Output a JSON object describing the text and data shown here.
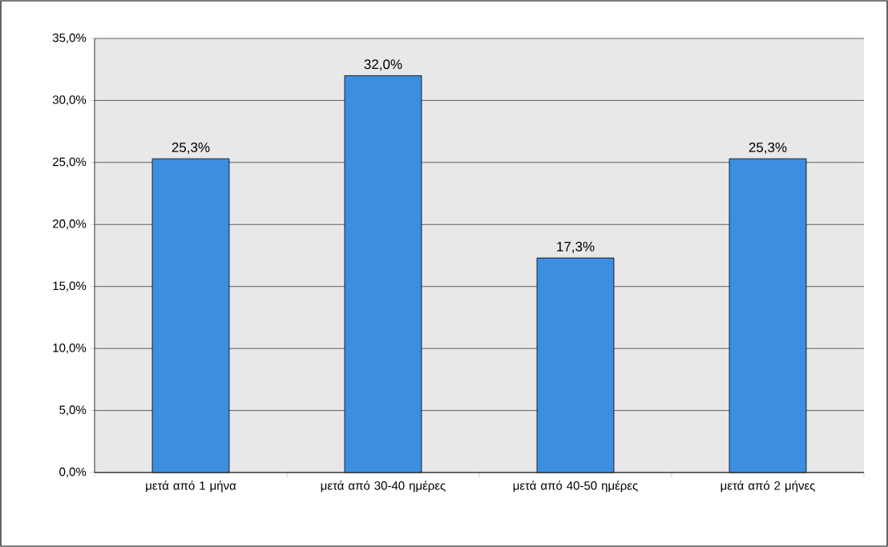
{
  "chart_data": {
    "type": "bar",
    "categories": [
      "μετά από 1 μήνα",
      "μετά από 30-40 ημέρες",
      "μετά από 40-50 ημέρες",
      "μετά από 2 μήνες"
    ],
    "values": [
      25.3,
      32.0,
      17.3,
      25.3
    ],
    "value_labels": [
      "25,3%",
      "32,0%",
      "17,3%",
      "25,3%"
    ],
    "color": "#3b8ee0",
    "ylim": [
      0,
      35
    ],
    "yticks": [
      {
        "value": 0,
        "label": "0,0%"
      },
      {
        "value": 5,
        "label": "5,0%"
      },
      {
        "value": 10,
        "label": "10,0%"
      },
      {
        "value": 15,
        "label": "15,0%"
      },
      {
        "value": 20,
        "label": "20,0%"
      },
      {
        "value": 25,
        "label": "25,0%"
      },
      {
        "value": 30,
        "label": "30,0%"
      },
      {
        "value": 35,
        "label": "35,0%"
      }
    ],
    "grid": "y"
  }
}
